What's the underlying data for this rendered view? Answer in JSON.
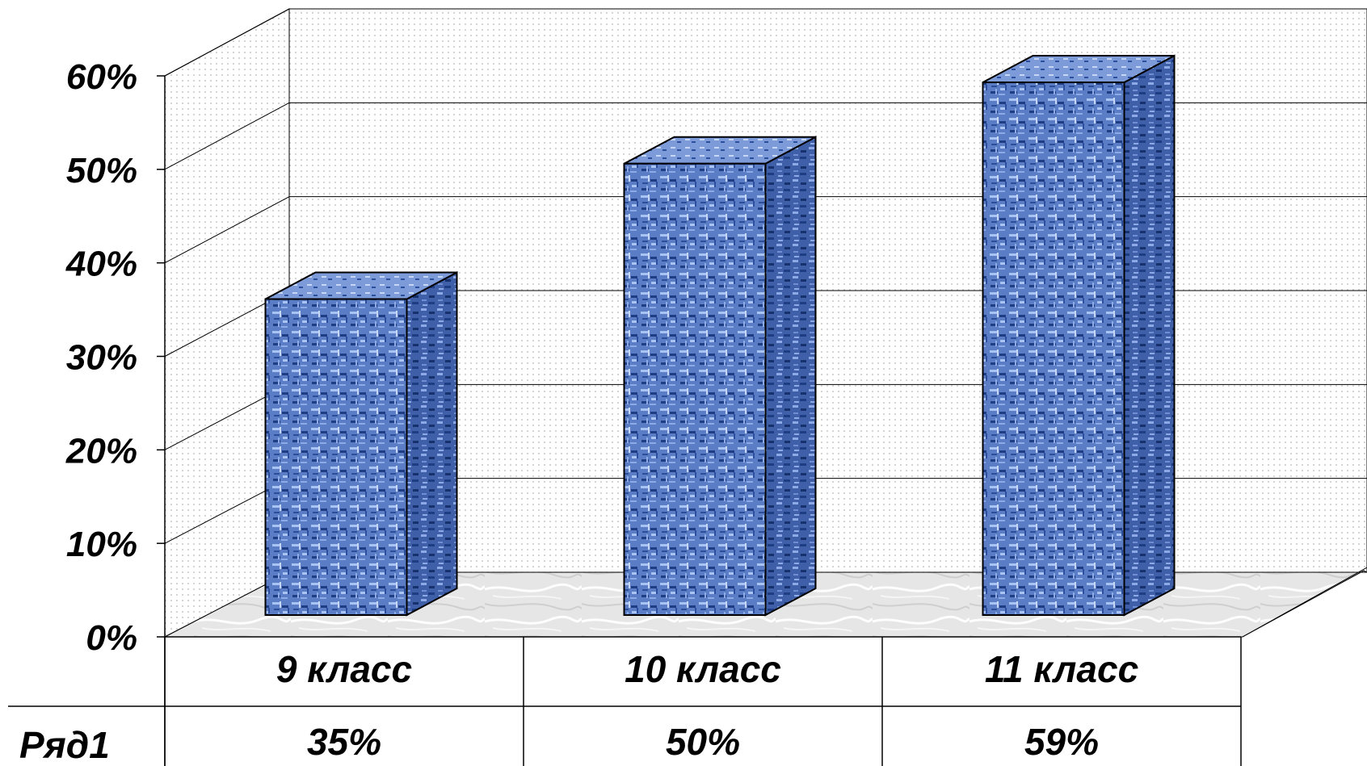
{
  "chart_data": {
    "type": "bar",
    "categories": [
      "9 класс",
      "10 класс",
      "11 класс"
    ],
    "series": [
      {
        "name": "Ряд1",
        "values": [
          35,
          50,
          59
        ],
        "value_labels": [
          "35%",
          "50%",
          "59%"
        ]
      }
    ],
    "ylim": [
      0,
      60
    ],
    "y_ticks": [
      "0%",
      "10%",
      "20%",
      "30%",
      "40%",
      "50%",
      "60%"
    ],
    "title": "",
    "xlabel": "",
    "ylabel": "",
    "grid": true,
    "legend": "data-table",
    "colors": {
      "bar_front": "#5b7dc6",
      "bar_side": "#3f5fa8",
      "bar_top": "#7d9ad9",
      "bar_pattern_light": "#a9c3f2",
      "bar_pattern_dark": "#1f3d82",
      "floor": "#e4e4e4",
      "wall_dots": "#b5b5b5"
    }
  }
}
